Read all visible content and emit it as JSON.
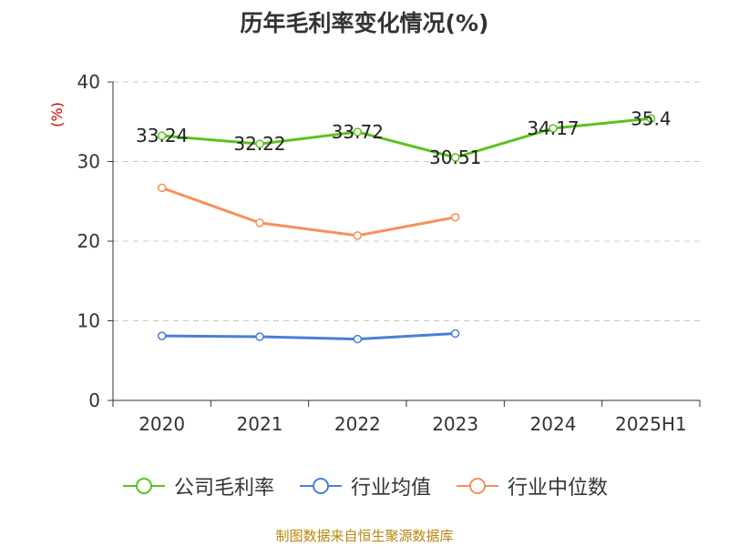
{
  "title": "历年毛利率变化情况(%)",
  "source": "制图数据来自恒生聚源数据库",
  "chart_data": {
    "type": "line",
    "unit_label": "(%)",
    "categories": [
      "2020",
      "2021",
      "2022",
      "2023",
      "2024",
      "2025H1"
    ],
    "ylim": [
      0,
      40
    ],
    "yticks": [
      0,
      10,
      20,
      30,
      40
    ],
    "grid": true,
    "legend_position": "bottom",
    "series": [
      {
        "name": "公司毛利率",
        "color": "#5cc21e",
        "values": [
          33.24,
          32.22,
          33.72,
          30.51,
          34.17,
          35.4
        ],
        "labels": [
          "33.24",
          "32.22",
          "33.72",
          "30.51",
          "34.17",
          "35.4"
        ]
      },
      {
        "name": "行业均值",
        "color": "#4a7fd6",
        "values": [
          8.1,
          8.0,
          7.7,
          8.4,
          null,
          null
        ]
      },
      {
        "name": "行业中位数",
        "color": "#f79059",
        "values": [
          26.7,
          22.3,
          20.7,
          23.0,
          null,
          null
        ]
      }
    ]
  }
}
